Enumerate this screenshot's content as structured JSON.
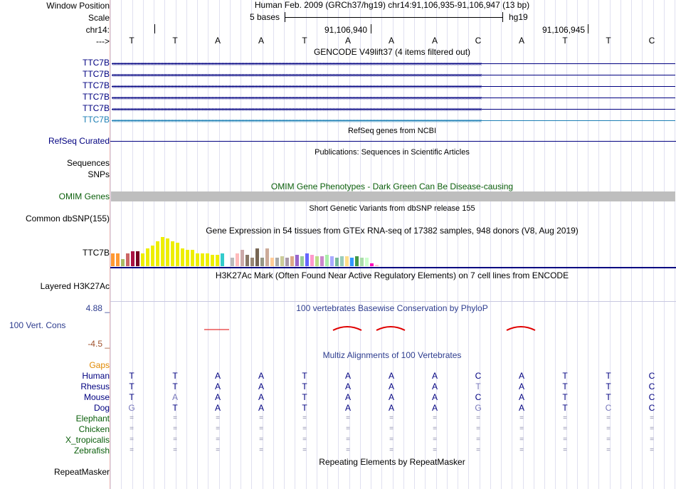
{
  "colors": {
    "track_blue": "#000080",
    "gencode_teal": "#1C7FB4",
    "omim_green": "#0A5E0A",
    "h3k27ac_gray": "#000000",
    "cons_red": "#E00000",
    "gaps_orange": "#E08800"
  },
  "ruler": {
    "window_label": "Window Position",
    "window_value": "Human Feb. 2009 (GRCh37/hg19)   chr14:91,106,935-91,106,947 (13 bp)",
    "scale_label": "Scale",
    "scale_value": "5 bases",
    "assembly": "hg19",
    "chrom_label": "chr14:",
    "pos1": "91,106,940",
    "pos2": "91,106,945",
    "strand_label": "--->",
    "bases": [
      "T",
      "T",
      "A",
      "A",
      "T",
      "A",
      "A",
      "A",
      "C",
      "A",
      "T",
      "T",
      "C"
    ]
  },
  "gencode": {
    "title": "GENCODE V49lift37 (4 items filtered out)",
    "items": [
      "TTC7B",
      "TTC7B",
      "TTC7B",
      "TTC7B",
      "TTC7B",
      "TTC7B"
    ]
  },
  "refseq": {
    "title": "RefSeq genes from NCBI",
    "label": "RefSeq Curated"
  },
  "publications": {
    "title": "Publications: Sequences in Scientific Articles",
    "label1": "Sequences",
    "label2": "SNPs"
  },
  "omim": {
    "title": "OMIM Gene Phenotypes - Dark Green Can Be Disease-causing",
    "label": "OMIM Genes"
  },
  "dbsnp": {
    "title": "Short Genetic Variants from dbSNP release 155",
    "label": "Common dbSNP(155)"
  },
  "gtex": {
    "title": "Gene Expression in 54 tissues from GTEx RNA-seq of 17382 samples, 948 donors (V8, Aug 2019)",
    "label": "TTC7B",
    "bars": [
      {
        "v": 0.45,
        "c": "#FF9933"
      },
      {
        "v": 0.45,
        "c": "#FF9933"
      },
      {
        "v": 0.25,
        "c": "#AABB66"
      },
      {
        "v": 0.45,
        "c": "#CC6666"
      },
      {
        "v": 0.5,
        "c": "#AA1144"
      },
      {
        "v": 0.5,
        "c": "#770022"
      },
      {
        "v": 0.45,
        "c": "#EEEE00"
      },
      {
        "v": 0.6,
        "c": "#EEEE00"
      },
      {
        "v": 0.7,
        "c": "#EEEE00"
      },
      {
        "v": 0.85,
        "c": "#EEEE00"
      },
      {
        "v": 1.0,
        "c": "#EEEE00"
      },
      {
        "v": 0.95,
        "c": "#EEEE00"
      },
      {
        "v": 0.85,
        "c": "#EEEE00"
      },
      {
        "v": 0.8,
        "c": "#EEEE00"
      },
      {
        "v": 0.6,
        "c": "#EEEE00"
      },
      {
        "v": 0.55,
        "c": "#EEEE00"
      },
      {
        "v": 0.55,
        "c": "#EEEE00"
      },
      {
        "v": 0.45,
        "c": "#EEEE00"
      },
      {
        "v": 0.45,
        "c": "#EEEE00"
      },
      {
        "v": 0.45,
        "c": "#EEEE00"
      },
      {
        "v": 0.4,
        "c": "#EEEE00"
      },
      {
        "v": 0.4,
        "c": "#EEEE00"
      },
      {
        "v": 0.45,
        "c": "#33CCCC"
      },
      {
        "v": 0.1,
        "c": "#FFFFFF"
      },
      {
        "v": 0.3,
        "c": "#BBBBBB"
      },
      {
        "v": 0.45,
        "c": "#FFBBBB"
      },
      {
        "v": 0.55,
        "c": "#CCAAAA"
      },
      {
        "v": 0.4,
        "c": "#887766"
      },
      {
        "v": 0.3,
        "c": "#998877"
      },
      {
        "v": 0.6,
        "c": "#776655"
      },
      {
        "v": 0.3,
        "c": "#999988"
      },
      {
        "v": 0.6,
        "c": "#CCAA99"
      },
      {
        "v": 0.3,
        "c": "#FFCC99"
      },
      {
        "v": 0.3,
        "c": "#AAAAAA"
      },
      {
        "v": 0.35,
        "c": "#CCCC99"
      },
      {
        "v": 0.3,
        "c": "#AA99AA"
      },
      {
        "v": 0.35,
        "c": "#DDAA88"
      },
      {
        "v": 0.4,
        "c": "#9966CC"
      },
      {
        "v": 0.35,
        "c": "#99CC99"
      },
      {
        "v": 0.45,
        "c": "#6666FF"
      },
      {
        "v": 0.4,
        "c": "#FF99CC"
      },
      {
        "v": 0.35,
        "c": "#BBDD88"
      },
      {
        "v": 0.35,
        "c": "#CC88CC"
      },
      {
        "v": 0.4,
        "c": "#AAEEAA"
      },
      {
        "v": 0.35,
        "c": "#AAAAFF"
      },
      {
        "v": 0.3,
        "c": "#77BB99"
      },
      {
        "v": 0.35,
        "c": "#99CCBB"
      },
      {
        "v": 0.35,
        "c": "#FFDD88"
      },
      {
        "v": 0.3,
        "c": "#3399FF"
      },
      {
        "v": 0.35,
        "c": "#449944"
      },
      {
        "v": 0.3,
        "c": "#AADDAA"
      },
      {
        "v": 0.3,
        "c": "#CCFFCC"
      },
      {
        "v": 0.1,
        "c": "#FF00BB"
      },
      {
        "v": 0.05,
        "c": "#FFCCCC"
      }
    ]
  },
  "h3k27ac": {
    "title": "H3K27Ac Mark (Often Found Near Active Regulatory Elements) on 7 cell lines from ENCODE",
    "label": "Layered H3K27Ac"
  },
  "phylop": {
    "title": "100 vertebrates Basewise Conservation by PhyloP",
    "label": "100 Vert. Cons",
    "max": "4.88 _",
    "min": "-4.5 _"
  },
  "multiz": {
    "title": "Multiz Alignments of 100 Vertebrates",
    "gaps_label": "Gaps",
    "species": [
      {
        "name": "Human",
        "bases": [
          "T",
          "T",
          "A",
          "A",
          "T",
          "A",
          "A",
          "A",
          "C",
          "A",
          "T",
          "T",
          "C"
        ]
      },
      {
        "name": "Rhesus",
        "bases": [
          "T",
          "T",
          "A",
          "A",
          "T",
          "A",
          "A",
          "A",
          "T",
          "A",
          "T",
          "T",
          "C"
        ]
      },
      {
        "name": "Mouse",
        "bases": [
          "T",
          "A",
          "A",
          "A",
          "T",
          "A",
          "A",
          "A",
          "C",
          "A",
          "T",
          "T",
          "C"
        ]
      },
      {
        "name": "Dog",
        "bases": [
          "G",
          "T",
          "A",
          "A",
          "T",
          "A",
          "A",
          "A",
          "G",
          "A",
          "T",
          "C",
          "C"
        ]
      },
      {
        "name": "Elephant",
        "bases": [
          "=",
          "=",
          "=",
          "=",
          "=",
          "=",
          "=",
          "=",
          "=",
          "=",
          "=",
          "=",
          "="
        ]
      },
      {
        "name": "Chicken",
        "bases": [
          "=",
          "=",
          "=",
          "=",
          "=",
          "=",
          "=",
          "=",
          "=",
          "=",
          "=",
          "=",
          "="
        ]
      },
      {
        "name": "X_tropicalis",
        "bases": [
          "=",
          "=",
          "=",
          "=",
          "=",
          "=",
          "=",
          "=",
          "=",
          "=",
          "=",
          "=",
          "="
        ]
      },
      {
        "name": "Zebrafish",
        "bases": [
          "=",
          "=",
          "=",
          "=",
          "=",
          "=",
          "=",
          "=",
          "=",
          "=",
          "=",
          "=",
          "="
        ]
      }
    ]
  },
  "repeatmasker": {
    "title": "Repeating Elements by RepeatMasker",
    "label": "RepeatMasker"
  }
}
